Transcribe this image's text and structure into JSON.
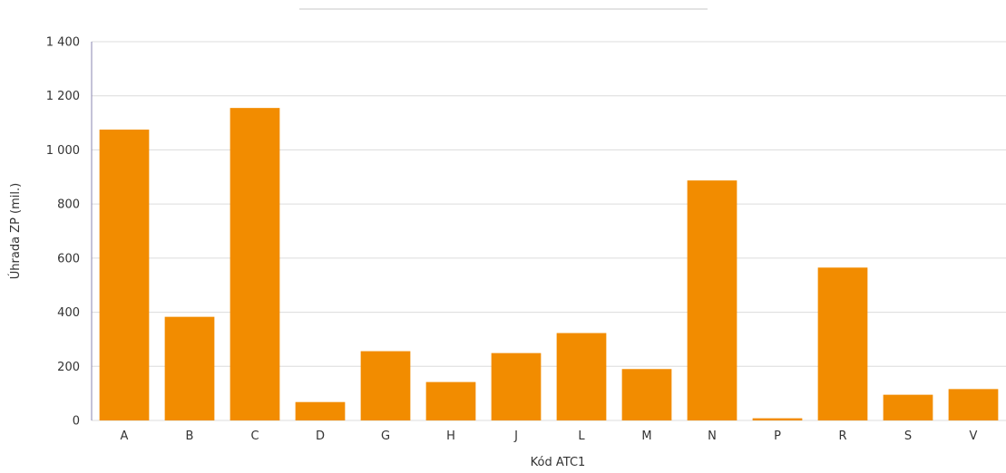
{
  "chart_data": {
    "type": "bar",
    "xlabel": "Kód ATC1",
    "ylabel": "Úhrada ZP (mil.)",
    "ylim": [
      0,
      1400
    ],
    "yticks": [
      0,
      200,
      400,
      600,
      800,
      1000,
      1200,
      1400
    ],
    "ytick_labels": [
      "0",
      "200",
      "400",
      "600",
      "800",
      "1 000",
      "1 200",
      "1 400"
    ],
    "categories": [
      "A",
      "B",
      "C",
      "D",
      "G",
      "H",
      "J",
      "L",
      "M",
      "N",
      "P",
      "R",
      "S",
      "V"
    ],
    "values": [
      1075,
      383,
      1155,
      68,
      256,
      142,
      249,
      323,
      190,
      887,
      8,
      565,
      95,
      116
    ],
    "grid": true,
    "bar_color": "#f28c00"
  }
}
